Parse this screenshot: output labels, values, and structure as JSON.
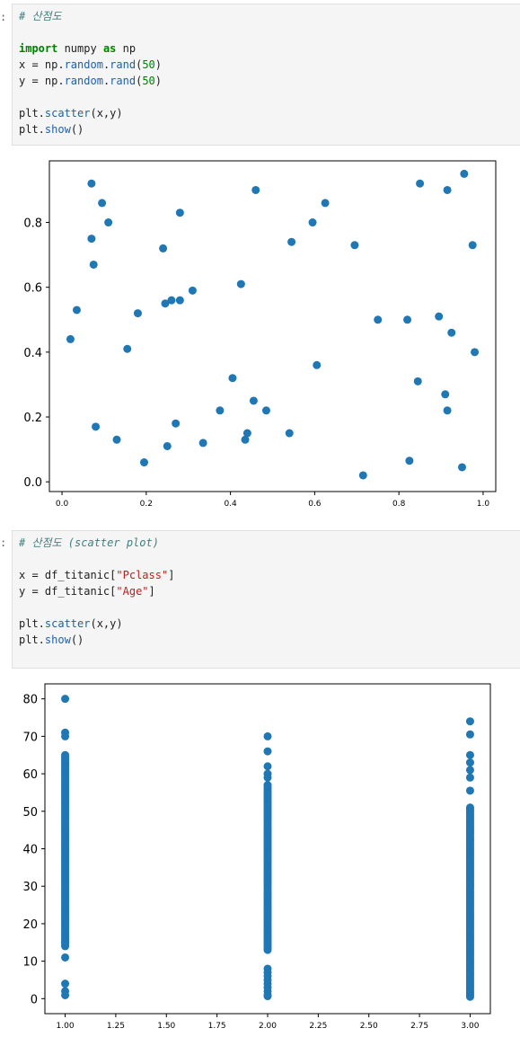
{
  "cells": [
    {
      "prompt": ":",
      "code": {
        "comment": "# 산점도",
        "line_import": {
          "kw1": "import",
          "mod": " numpy ",
          "kw2": "as",
          "alias": " np"
        },
        "line_x": {
          "pre": "x = np.",
          "obj": "random",
          "dot": ".",
          "fn": "rand",
          "open": "(",
          "arg": "50",
          "close": ")"
        },
        "line_y": {
          "pre": "y = np.",
          "obj": "random",
          "dot": ".",
          "fn": "rand",
          "open": "(",
          "arg": "50",
          "close": ")"
        },
        "line_scatter": {
          "pre": "plt.",
          "fn": "scatter",
          "args": "(x,y)"
        },
        "line_show": {
          "pre": "plt.",
          "fn": "show",
          "args": "()"
        }
      }
    },
    {
      "prompt": ":",
      "code": {
        "comment": "# 산점도 (scatter plot)",
        "line_x": {
          "pre": "x = df_titanic",
          "ob": "[",
          "str": "\"Pclass\"",
          "cb": "]"
        },
        "line_y": {
          "pre": "y = df_titanic",
          "ob": "[",
          "str": "\"Age\"",
          "cb": "]"
        },
        "line_scatter": {
          "pre": "plt.",
          "fn": "scatter",
          "args": "(x,y)"
        },
        "line_show": {
          "pre": "plt.",
          "fn": "show",
          "args": "()"
        }
      }
    }
  ],
  "chart_data": [
    {
      "type": "scatter",
      "color": "#1f77b4",
      "xlim": [
        -0.03,
        1.03
      ],
      "ylim": [
        -0.03,
        0.99
      ],
      "xticks": [
        0.0,
        0.2,
        0.4,
        0.6,
        0.8,
        1.0
      ],
      "xtick_labels": [
        "0.0",
        "0.2",
        "0.4",
        "0.6",
        "0.8",
        "1.0"
      ],
      "yticks": [
        0.0,
        0.2,
        0.4,
        0.6,
        0.8
      ],
      "ytick_labels": [
        "0.0",
        "0.2",
        "0.4",
        "0.6",
        "0.8"
      ],
      "points": [
        [
          0.02,
          0.44
        ],
        [
          0.035,
          0.53
        ],
        [
          0.07,
          0.92
        ],
        [
          0.07,
          0.75
        ],
        [
          0.075,
          0.67
        ],
        [
          0.08,
          0.17
        ],
        [
          0.095,
          0.86
        ],
        [
          0.11,
          0.8
        ],
        [
          0.13,
          0.13
        ],
        [
          0.155,
          0.41
        ],
        [
          0.18,
          0.52
        ],
        [
          0.195,
          0.06
        ],
        [
          0.24,
          0.72
        ],
        [
          0.245,
          0.55
        ],
        [
          0.25,
          0.11
        ],
        [
          0.26,
          0.56
        ],
        [
          0.27,
          0.18
        ],
        [
          0.28,
          0.83
        ],
        [
          0.28,
          0.56
        ],
        [
          0.31,
          0.59
        ],
        [
          0.335,
          0.12
        ],
        [
          0.375,
          0.22
        ],
        [
          0.405,
          0.32
        ],
        [
          0.425,
          0.61
        ],
        [
          0.435,
          0.13
        ],
        [
          0.44,
          0.15
        ],
        [
          0.455,
          0.25
        ],
        [
          0.46,
          0.9
        ],
        [
          0.485,
          0.22
        ],
        [
          0.54,
          0.15
        ],
        [
          0.545,
          0.74
        ],
        [
          0.595,
          0.8
        ],
        [
          0.605,
          0.36
        ],
        [
          0.625,
          0.86
        ],
        [
          0.695,
          0.73
        ],
        [
          0.715,
          0.02
        ],
        [
          0.75,
          0.5
        ],
        [
          0.82,
          0.5
        ],
        [
          0.825,
          0.065
        ],
        [
          0.845,
          0.31
        ],
        [
          0.85,
          0.92
        ],
        [
          0.895,
          0.51
        ],
        [
          0.91,
          0.27
        ],
        [
          0.915,
          0.22
        ],
        [
          0.915,
          0.9
        ],
        [
          0.925,
          0.46
        ],
        [
          0.95,
          0.045
        ],
        [
          0.955,
          0.95
        ],
        [
          0.975,
          0.73
        ],
        [
          0.98,
          0.4
        ]
      ]
    },
    {
      "type": "scatter",
      "color": "#1f77b4",
      "xlim": [
        0.9,
        3.1
      ],
      "ylim": [
        -4,
        84
      ],
      "xticks": [
        1.0,
        1.25,
        1.5,
        1.75,
        2.0,
        2.25,
        2.5,
        2.75,
        3.0
      ],
      "xtick_labels": [
        "1.00",
        "1.25",
        "1.50",
        "1.75",
        "2.00",
        "2.25",
        "2.50",
        "2.75",
        "3.00"
      ],
      "yticks": [
        0,
        10,
        20,
        30,
        40,
        50,
        60,
        70,
        80
      ],
      "ytick_labels": [
        "0",
        "10",
        "20",
        "30",
        "40",
        "50",
        "60",
        "70",
        "80"
      ],
      "groups": [
        {
          "x": 1.0,
          "dense_range": [
            14,
            65
          ],
          "extra": [
            80,
            71,
            70,
            11,
            4,
            2,
            0.92
          ]
        },
        {
          "x": 2.0,
          "dense_range": [
            13,
            57
          ],
          "extra": [
            70,
            66,
            62,
            60,
            59,
            8,
            7,
            6,
            5,
            4,
            3,
            2,
            1,
            0.67
          ]
        },
        {
          "x": 3.0,
          "dense_range": [
            0.5,
            51
          ],
          "extra": [
            74,
            70.5,
            65,
            63,
            61,
            59,
            55.5
          ]
        }
      ]
    }
  ]
}
